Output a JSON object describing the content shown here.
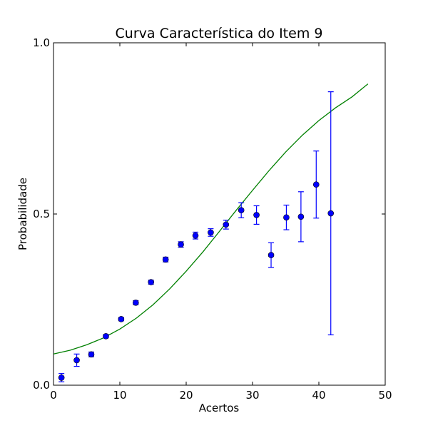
{
  "chart_data": {
    "type": "scatter",
    "title": "Curva Característica do Item 9",
    "xlabel": "Acertos",
    "ylabel": "Probabilidade",
    "xlim": [
      0,
      50
    ],
    "ylim": [
      0.0,
      1.0
    ],
    "x_ticks": [
      "0",
      "10",
      "20",
      "30",
      "40",
      "50"
    ],
    "y_ticks": [
      "0.0",
      "0.5",
      "1.0"
    ],
    "grid": false,
    "colors": {
      "points": "#0000ff",
      "curve": "#008000"
    },
    "points": [
      {
        "x": 1.2,
        "y": 0.022,
        "err": 0.012
      },
      {
        "x": 3.5,
        "y": 0.073,
        "err": 0.018
      },
      {
        "x": 5.7,
        "y": 0.09,
        "err": 0.007
      },
      {
        "x": 7.9,
        "y": 0.143,
        "err": 0.005
      },
      {
        "x": 10.2,
        "y": 0.193,
        "err": 0.005
      },
      {
        "x": 12.4,
        "y": 0.241,
        "err": 0.006
      },
      {
        "x": 14.7,
        "y": 0.301,
        "err": 0.006
      },
      {
        "x": 16.9,
        "y": 0.367,
        "err": 0.007
      },
      {
        "x": 19.2,
        "y": 0.411,
        "err": 0.008
      },
      {
        "x": 21.4,
        "y": 0.437,
        "err": 0.01
      },
      {
        "x": 23.7,
        "y": 0.446,
        "err": 0.011
      },
      {
        "x": 26.0,
        "y": 0.469,
        "err": 0.013
      },
      {
        "x": 28.3,
        "y": 0.511,
        "err": 0.022
      },
      {
        "x": 30.6,
        "y": 0.497,
        "err": 0.027
      },
      {
        "x": 32.8,
        "y": 0.38,
        "err": 0.036
      },
      {
        "x": 35.1,
        "y": 0.49,
        "err": 0.036
      },
      {
        "x": 37.3,
        "y": 0.492,
        "err": 0.073
      },
      {
        "x": 39.6,
        "y": 0.586,
        "err": 0.098
      },
      {
        "x": 41.8,
        "y": 0.502,
        "err": 0.355
      }
    ],
    "curve": {
      "type": "line",
      "x": [
        0,
        2.5,
        5,
        7.5,
        10,
        12.5,
        15,
        17.5,
        20,
        22.5,
        25,
        27.5,
        30,
        32.5,
        35,
        37.5,
        40,
        42.5,
        45,
        47.4
      ],
      "y": [
        0.091,
        0.102,
        0.118,
        0.138,
        0.164,
        0.196,
        0.235,
        0.281,
        0.333,
        0.389,
        0.449,
        0.51,
        0.569,
        0.627,
        0.681,
        0.73,
        0.773,
        0.81,
        0.842,
        0.88
      ]
    }
  }
}
